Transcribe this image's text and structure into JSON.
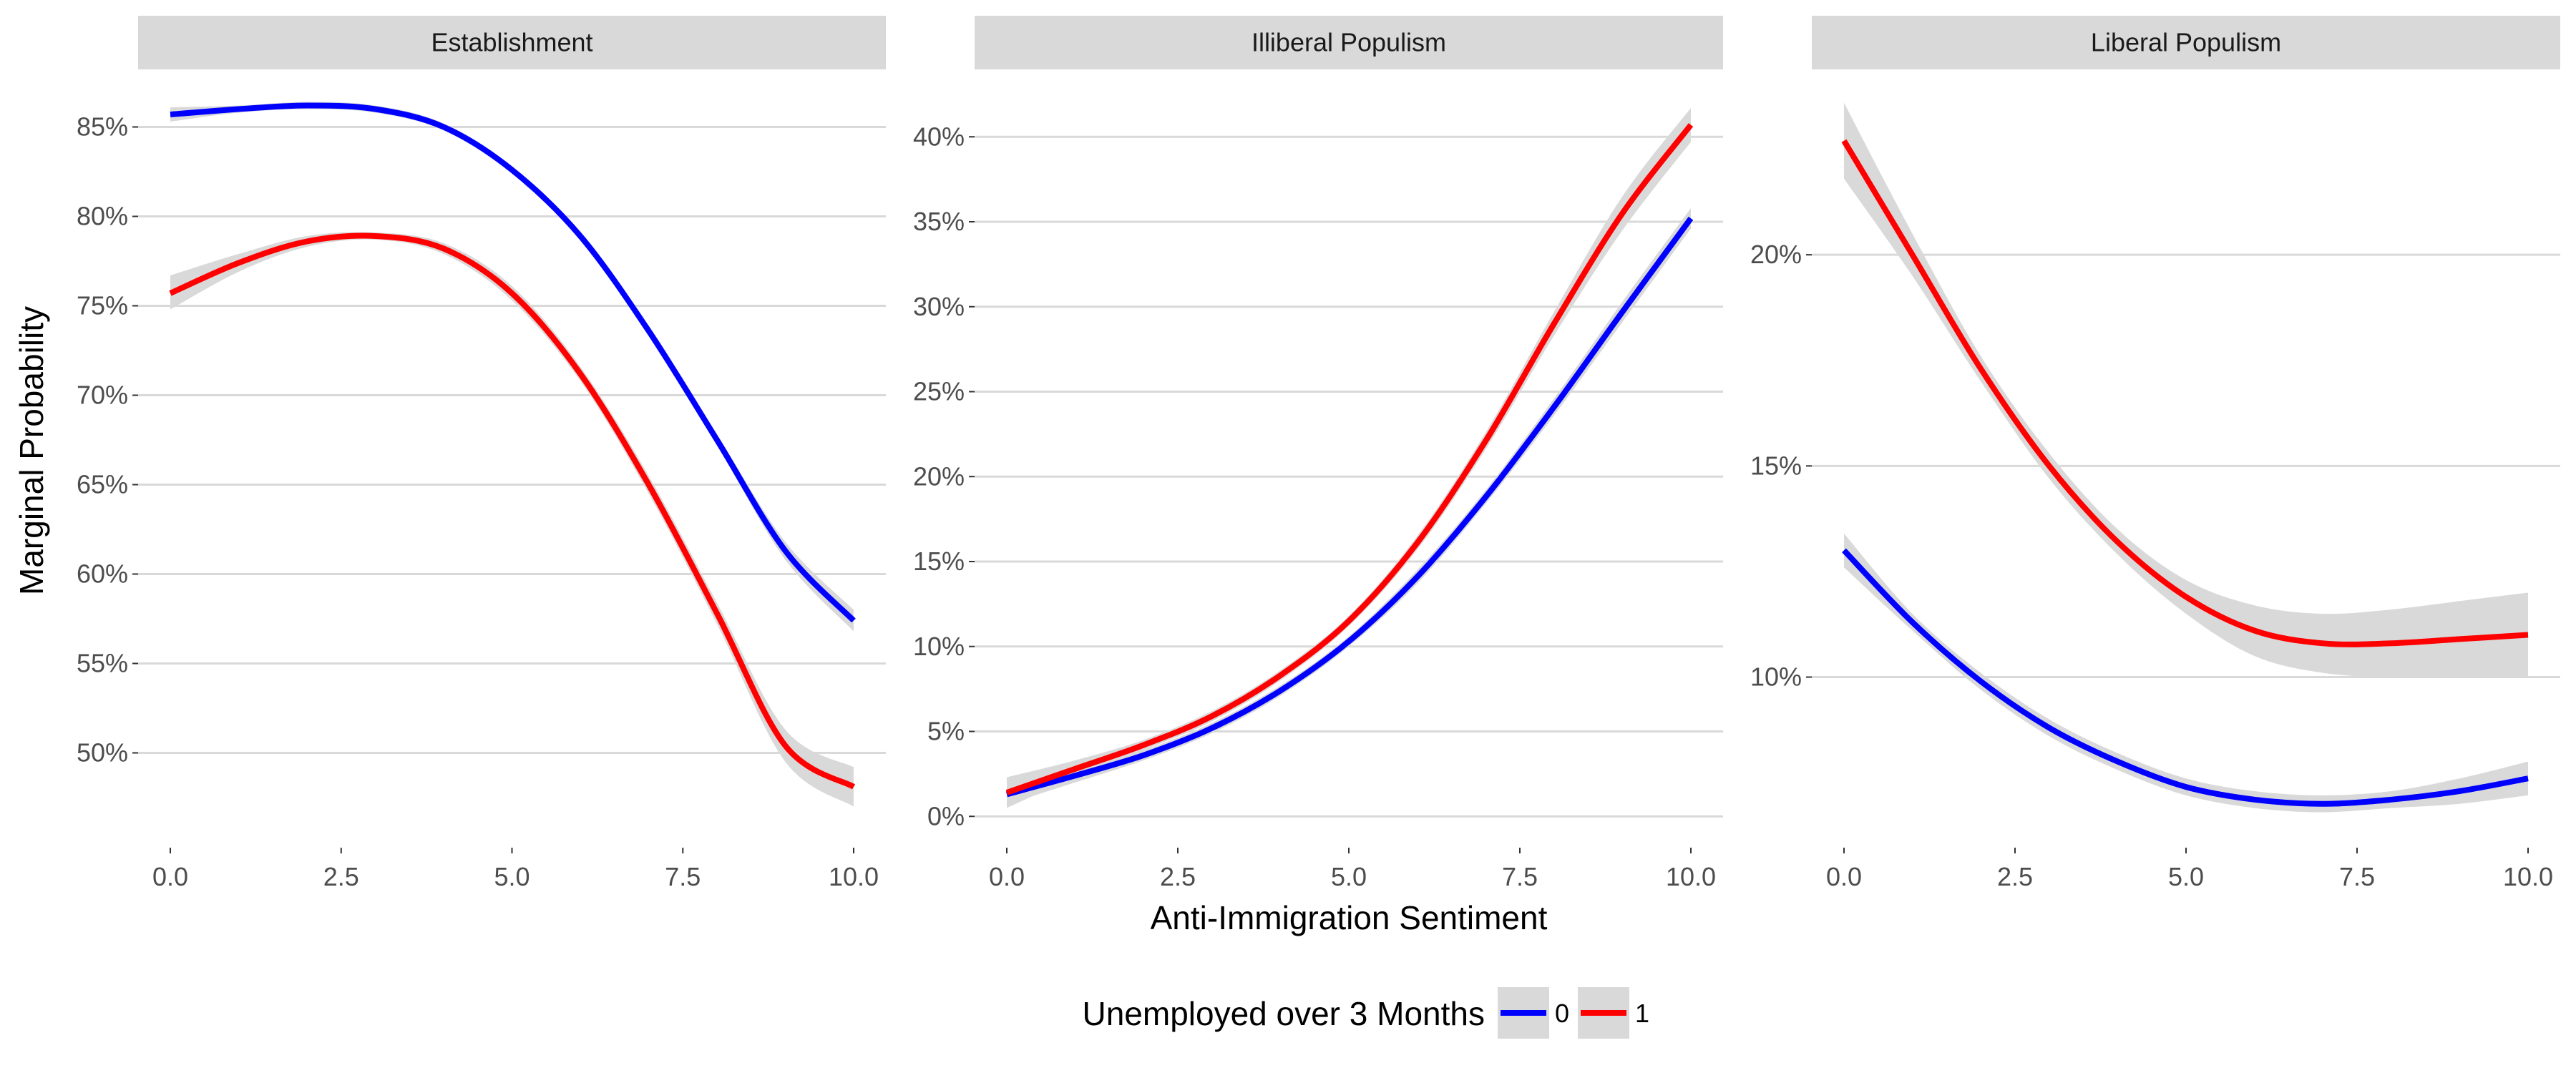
{
  "chart_data": {
    "type": "line",
    "xlabel": "Anti-Immigration Sentiment",
    "ylabel": "Marginal Probability",
    "x_ticks": [
      0,
      2.5,
      5,
      7.5,
      10
    ],
    "x_tick_labels": [
      "0.0",
      "2.5",
      "5.0",
      "7.5",
      "10.0"
    ],
    "xlim": [
      0,
      10
    ],
    "grid": "horizontal major",
    "legend": {
      "title": "Unemployed over 3 Months",
      "position": "bottom",
      "entries": [
        {
          "label": "0",
          "color": "#0000ff"
        },
        {
          "label": "1",
          "color": "#ff0000"
        }
      ]
    },
    "x": [
      0,
      1,
      2,
      3,
      4,
      5,
      6,
      7,
      8,
      9,
      10
    ],
    "panels": [
      {
        "strip": "Establishment",
        "ylim": [
          0.455,
          0.873
        ],
        "y_ticks": [
          0.5,
          0.55,
          0.6,
          0.65,
          0.7,
          0.75,
          0.8,
          0.85
        ],
        "y_tick_labels": [
          "50%",
          "55%",
          "60%",
          "65%",
          "70%",
          "75%",
          "80%",
          "85%"
        ],
        "series": [
          {
            "name": "0",
            "color": "#0000ff",
            "values": [
              0.857,
              0.86,
              0.862,
              0.86,
              0.85,
              0.826,
              0.789,
              0.736,
              0.675,
              0.613,
              0.574
            ],
            "ci_low": [
              0.853,
              0.858,
              0.86,
              0.858,
              0.848,
              0.824,
              0.787,
              0.734,
              0.672,
              0.608,
              0.568
            ],
            "ci_high": [
              0.861,
              0.862,
              0.864,
              0.862,
              0.852,
              0.828,
              0.791,
              0.738,
              0.678,
              0.618,
              0.58
            ]
          },
          {
            "name": "1",
            "color": "#ff0000",
            "values": [
              0.757,
              0.774,
              0.786,
              0.789,
              0.782,
              0.757,
              0.712,
              0.65,
              0.578,
              0.504,
              0.481
            ],
            "ci_low": [
              0.748,
              0.769,
              0.783,
              0.787,
              0.779,
              0.753,
              0.708,
              0.645,
              0.572,
              0.495,
              0.47
            ],
            "ci_high": [
              0.767,
              0.779,
              0.789,
              0.791,
              0.785,
              0.761,
              0.716,
              0.655,
              0.584,
              0.513,
              0.492
            ]
          }
        ]
      },
      {
        "strip": "Illiberal Populism",
        "ylim": [
          -0.01,
          0.43
        ],
        "y_ticks": [
          0,
          0.05,
          0.1,
          0.15,
          0.2,
          0.25,
          0.3,
          0.35,
          0.4
        ],
        "y_tick_labels": [
          "0%",
          "5%",
          "10%",
          "15%",
          "20%",
          "25%",
          "30%",
          "35%",
          "40%"
        ],
        "series": [
          {
            "name": "0",
            "color": "#0000ff",
            "values": [
              0.013,
              0.024,
              0.036,
              0.052,
              0.074,
              0.103,
              0.141,
              0.188,
              0.241,
              0.297,
              0.352
            ],
            "ci_low": [
              0.007,
              0.02,
              0.033,
              0.049,
              0.071,
              0.1,
              0.137,
              0.184,
              0.236,
              0.291,
              0.346
            ],
            "ci_high": [
              0.019,
              0.028,
              0.039,
              0.055,
              0.077,
              0.106,
              0.145,
              0.192,
              0.246,
              0.303,
              0.358
            ]
          },
          {
            "name": "1",
            "color": "#ff0000",
            "values": [
              0.014,
              0.028,
              0.042,
              0.059,
              0.083,
              0.115,
              0.161,
              0.221,
              0.29,
              0.355,
              0.407
            ],
            "ci_low": [
              0.005,
              0.023,
              0.039,
              0.056,
              0.08,
              0.112,
              0.157,
              0.216,
              0.283,
              0.345,
              0.397
            ],
            "ci_high": [
              0.023,
              0.033,
              0.045,
              0.062,
              0.086,
              0.118,
              0.165,
              0.226,
              0.297,
              0.365,
              0.417
            ]
          }
        ]
      },
      {
        "strip": "Liberal Populism",
        "ylim": [
          0.063,
          0.24
        ],
        "y_ticks": [
          0.1,
          0.15,
          0.2
        ],
        "y_tick_labels": [
          "10%",
          "15%",
          "20%"
        ],
        "series": [
          {
            "name": "0",
            "color": "#0000ff",
            "values": [
              0.13,
              0.113,
              0.099,
              0.088,
              0.08,
              0.074,
              0.071,
              0.07,
              0.071,
              0.073,
              0.076
            ],
            "ci_low": [
              0.126,
              0.111,
              0.097,
              0.086,
              0.078,
              0.072,
              0.069,
              0.068,
              0.069,
              0.07,
              0.072
            ],
            "ci_high": [
              0.134,
              0.115,
              0.101,
              0.09,
              0.082,
              0.076,
              0.073,
              0.072,
              0.073,
              0.076,
              0.08
            ]
          },
          {
            "name": "1",
            "color": "#ff0000",
            "values": [
              0.227,
              0.2,
              0.173,
              0.15,
              0.132,
              0.119,
              0.111,
              0.108,
              0.108,
              0.109,
              0.11
            ],
            "ci_low": [
              0.218,
              0.195,
              0.17,
              0.147,
              0.129,
              0.115,
              0.105,
              0.101,
              0.1,
              0.1,
              0.1
            ],
            "ci_high": [
              0.236,
              0.205,
              0.176,
              0.153,
              0.135,
              0.123,
              0.117,
              0.115,
              0.116,
              0.118,
              0.12
            ]
          }
        ]
      }
    ]
  },
  "colors": {
    "ribbon": "#d9d9d9",
    "grid": "#d9d9d9",
    "strip_background": "#d9d9d9"
  }
}
